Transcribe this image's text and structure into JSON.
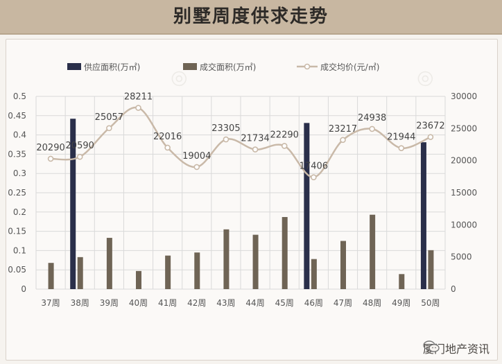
{
  "header": {
    "title": "别墅周度供求走势"
  },
  "footer": {
    "source": "厦门地产资讯",
    "icon": "wechat-icon"
  },
  "colors": {
    "supply": "#2a2f4a",
    "deal": "#6f6455",
    "price": "#c9b9a8",
    "grid": "#d9d9d9",
    "text": "#555555"
  },
  "chart_data": {
    "type": "bar",
    "categories": [
      "37周",
      "38周",
      "39周",
      "40周",
      "41周",
      "42周",
      "43周",
      "44周",
      "45周",
      "46周",
      "47周",
      "48周",
      "49周",
      "50周"
    ],
    "series": [
      {
        "name": "供应面积(万㎡)",
        "type": "bar",
        "axis": "left",
        "values": [
          0,
          0.442,
          0,
          0,
          0,
          0,
          0,
          0,
          0,
          0.431,
          0,
          0,
          0,
          0.381
        ]
      },
      {
        "name": "成交面积(万㎡)",
        "type": "bar",
        "axis": "left",
        "values": [
          0.068,
          0.083,
          0.133,
          0.047,
          0.087,
          0.095,
          0.155,
          0.141,
          0.187,
          0.078,
          0.125,
          0.193,
          0.039,
          0.101
        ]
      },
      {
        "name": "成交均价(元/㎡)",
        "type": "line",
        "axis": "right",
        "values": [
          20290,
          20590,
          25057,
          28211,
          22016,
          19004,
          23305,
          21734,
          22290,
          17406,
          23217,
          24938,
          21944,
          23672
        ]
      }
    ],
    "y_left": {
      "min": 0,
      "max": 0.5,
      "ticks": [
        "0",
        "0.05",
        "0.1",
        "0.15",
        "0.2",
        "0.25",
        "0.3",
        "0.35",
        "0.4",
        "0.45",
        "0.5"
      ]
    },
    "y_right": {
      "min": 0,
      "max": 30000,
      "ticks": [
        "0",
        "5000",
        "10000",
        "15000",
        "20000",
        "25000",
        "30000"
      ]
    },
    "legend_position": "top",
    "grid": true
  }
}
